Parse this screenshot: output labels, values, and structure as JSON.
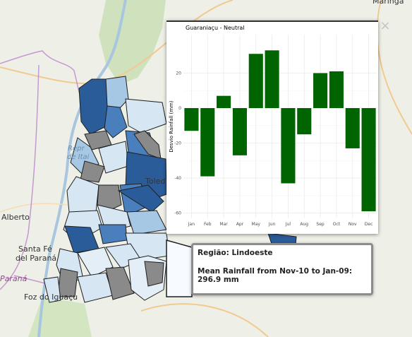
{
  "map": {
    "labels": {
      "top_right": "Maringá",
      "city_albert": "Alberto",
      "city_santa_fe_1": "Santa Fé",
      "city_santa_fe_2": "del Paraná",
      "state_parana": "Paraná",
      "city_foz": "Foz do Iguaçu",
      "water_1": "Repr",
      "water_2": "de Itai",
      "city_toledo": "Toledo"
    },
    "colors": {
      "background": "#eef0e8",
      "region_dark": "#2b5c9a",
      "region_mid": "#4a7fbd",
      "region_light": "#a6c8e4",
      "region_pale": "#d6e6f3",
      "region_gray": "#8a8a8a",
      "border_purple": "#b983c9"
    }
  },
  "popup": {
    "close_label": "×"
  },
  "tooltip": {
    "region_label": "Região: Lindoeste",
    "rainfall_label": "Mean Rainfall from Nov-10 to Jan-09: 296.9 mm"
  },
  "chart_data": {
    "type": "bar",
    "title": "Guaraniaçu - Neutral",
    "xlabel": "",
    "ylabel": "Desvio Rainfall (mm)",
    "categories": [
      "Jan",
      "Feb",
      "Mar",
      "Apr",
      "May",
      "Jun",
      "Jul",
      "Aug",
      "Sep",
      "Oct",
      "Nov",
      "Dec"
    ],
    "values": [
      -13,
      -39,
      7,
      -27,
      31,
      33,
      -43,
      -15,
      20,
      21,
      -23,
      -59
    ],
    "yticks": [
      20,
      0,
      -20,
      -40,
      -60
    ],
    "ylim": [
      -63,
      42
    ],
    "grid": true,
    "bar_color": "#006400"
  }
}
